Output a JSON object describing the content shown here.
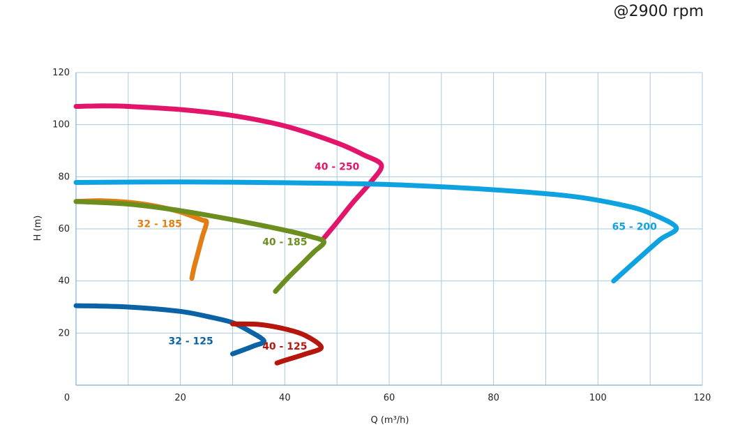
{
  "speed_note": "@2900 rpm",
  "chart_data": {
    "type": "line",
    "title": "",
    "xlabel": "Q (m³/h)",
    "ylabel": "H (m)",
    "xlim": [
      0,
      120
    ],
    "ylim": [
      0,
      120
    ],
    "xticks": [
      0,
      20,
      40,
      60,
      80,
      100,
      120
    ],
    "yticks": [
      20,
      40,
      60,
      80,
      100,
      120
    ],
    "x_grid_step": 10,
    "y_grid_step": 20,
    "grid": true,
    "series": [
      {
        "name": "40 - 250",
        "color": "#e2156b",
        "label_at": [
          50,
          84
        ],
        "points": [
          [
            0,
            107
          ],
          [
            5,
            107.2
          ],
          [
            10,
            107
          ],
          [
            20,
            105.8
          ],
          [
            30,
            103.5
          ],
          [
            40,
            99.5
          ],
          [
            50,
            93
          ],
          [
            55,
            88.5
          ],
          [
            58.5,
            84.5
          ],
          [
            56.5,
            78
          ],
          [
            53,
            70
          ],
          [
            50,
            62.5
          ],
          [
            47.5,
            56.5
          ]
        ]
      },
      {
        "name": "65 - 200",
        "color": "#0ea2e0",
        "label_at": [
          107,
          61
        ],
        "points": [
          [
            0,
            77.8
          ],
          [
            20,
            78
          ],
          [
            40,
            77.7
          ],
          [
            60,
            77
          ],
          [
            80,
            75
          ],
          [
            95,
            72.5
          ],
          [
            105,
            69
          ],
          [
            110,
            66
          ],
          [
            115,
            60.5
          ],
          [
            112,
            56
          ],
          [
            108,
            49
          ],
          [
            103,
            40
          ]
        ]
      },
      {
        "name": "32 - 185",
        "color": "#e17f14",
        "label_at": [
          16,
          62
        ],
        "points": [
          [
            0,
            70.5
          ],
          [
            5,
            70.8
          ],
          [
            10,
            70.2
          ],
          [
            15,
            68.8
          ],
          [
            20,
            66.5
          ],
          [
            24,
            63.5
          ],
          [
            25,
            62.5
          ],
          [
            24.2,
            57
          ],
          [
            23.4,
            51
          ],
          [
            22.6,
            45
          ],
          [
            22.2,
            41
          ]
        ]
      },
      {
        "name": "40 - 185",
        "color": "#6b8e1f",
        "label_at": [
          40,
          55
        ],
        "points": [
          [
            0,
            70.5
          ],
          [
            10,
            69.5
          ],
          [
            20,
            67
          ],
          [
            30,
            63.5
          ],
          [
            40,
            59.5
          ],
          [
            45,
            57
          ],
          [
            47.5,
            55
          ],
          [
            45.5,
            51
          ],
          [
            43,
            46
          ],
          [
            40.5,
            41
          ],
          [
            38.2,
            36
          ]
        ]
      },
      {
        "name": "32 - 125",
        "color": "#0b63a5",
        "label_at": [
          22,
          17
        ],
        "points": [
          [
            0,
            30.5
          ],
          [
            10,
            30
          ],
          [
            20,
            28.3
          ],
          [
            26,
            26
          ],
          [
            30,
            24
          ],
          [
            33,
            21
          ],
          [
            36,
            17
          ],
          [
            34,
            15
          ],
          [
            30,
            12
          ]
        ]
      },
      {
        "name": "40 - 125",
        "color": "#b5170d",
        "label_at": [
          40,
          15
        ],
        "points": [
          [
            30,
            23.5
          ],
          [
            35,
            23.3
          ],
          [
            40,
            21.6
          ],
          [
            44,
            19
          ],
          [
            47,
            14.5
          ],
          [
            44,
            12
          ],
          [
            40,
            9.5
          ],
          [
            38.5,
            8.5
          ]
        ]
      }
    ]
  }
}
